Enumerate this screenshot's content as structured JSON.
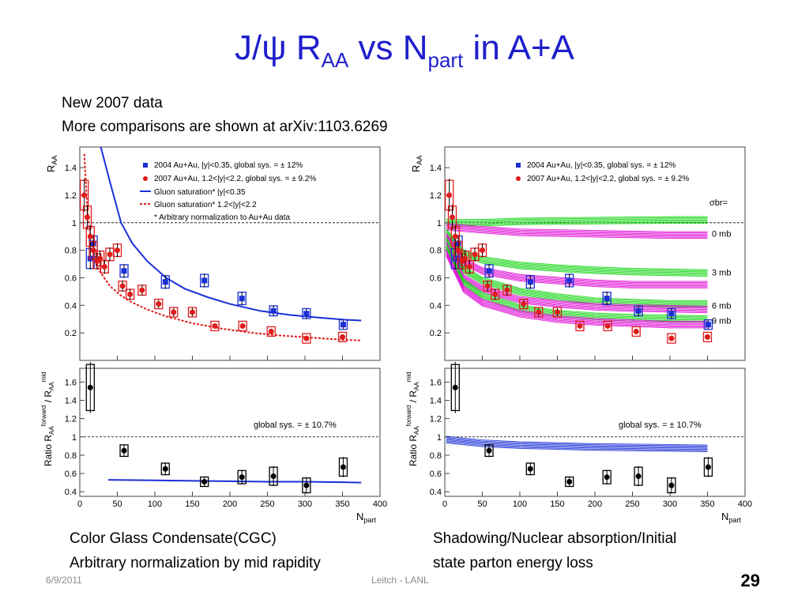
{
  "slide": {
    "title_main": "J/ψ R",
    "title_sub1": "AA",
    "title_mid": " vs N",
    "title_sub2": "part",
    "title_end": " in A+A",
    "note1": "New 2007 data",
    "note2": "More comparisons are shown at arXiv:1103.6269",
    "caption_left": [
      "Color Glass Condensate(CGC)",
      "Arbitrary normalization by mid rapidity"
    ],
    "caption_right": [
      "Shadowing/Nuclear absorption/Initial",
      "state parton energy loss"
    ],
    "date": "6/9/2011",
    "author": "Leitch - LANL",
    "page": "29"
  },
  "colors": {
    "title": "#1f1fcc",
    "blue": "#1a2fd6",
    "red": "#e01b1b",
    "green": "#19d619",
    "magenta": "#e010d6"
  },
  "chart_data": [
    {
      "panel": "left-top",
      "type": "scatter",
      "ylabel": "R_AA",
      "ylim": [
        0,
        1.55
      ],
      "xlim": [
        0,
        400
      ],
      "yticks": [
        "0.2",
        "0.4",
        "0.6",
        "0.8",
        "1",
        "1.2",
        "1.4"
      ],
      "legend": {
        "blue": "2004 Au+Au,   |y|<0.35,    global sys. = ± 12%",
        "red": "2007 Au+Au,  1.2<|y|<2.2,  global sys. = ± 9.2%",
        "blue_line": "Gluon saturation* |y|<0.35",
        "red_line": "Gluon saturation* 1.2<|y|<2.2",
        "footnote": "* Arbitrary normalization to Au+Au data"
      },
      "series": [
        {
          "name": "2004 Au+Au, |y|<0.35",
          "color": "blue",
          "x": [
            14,
            18,
            59,
            114,
            166,
            216,
            258,
            302,
            351
          ],
          "y": [
            0.74,
            0.85,
            0.65,
            0.57,
            0.58,
            0.45,
            0.36,
            0.34,
            0.26
          ],
          "err": [
            0.08,
            0.06,
            0.05,
            0.05,
            0.05,
            0.05,
            0.04,
            0.04,
            0.03
          ]
        },
        {
          "name": "2007 Au+Au, 1.2<|y|<2.2",
          "color": "red",
          "x": [
            6,
            10,
            14,
            18,
            23,
            27,
            33,
            40,
            50,
            57,
            67,
            83,
            105,
            125,
            150,
            180,
            217,
            255,
            302,
            350
          ],
          "y": [
            1.2,
            1.04,
            0.9,
            0.8,
            0.72,
            0.74,
            0.68,
            0.77,
            0.8,
            0.54,
            0.48,
            0.51,
            0.41,
            0.35,
            0.35,
            0.25,
            0.25,
            0.21,
            0.16,
            0.17
          ],
          "err": [
            0.12,
            0.09,
            0.08,
            0.07,
            0.06,
            0.06,
            0.05,
            0.05,
            0.05,
            0.04,
            0.04,
            0.04,
            0.03,
            0.03,
            0.03,
            0.02,
            0.02,
            0.02,
            0.02,
            0.02
          ]
        }
      ],
      "curves": [
        {
          "name": "Gluon saturation* |y|<0.35",
          "color": "blue",
          "x": [
            28,
            40,
            55,
            70,
            90,
            115,
            140,
            170,
            200,
            240,
            280,
            320,
            355,
            375
          ],
          "y": [
            1.55,
            1.3,
            1.0,
            0.85,
            0.72,
            0.6,
            0.52,
            0.46,
            0.41,
            0.36,
            0.33,
            0.31,
            0.295,
            0.29
          ]
        },
        {
          "name": "Gluon saturation* 1.2<|y|<2.2",
          "color": "red",
          "x": [
            6,
            10,
            15,
            25,
            40,
            55,
            70,
            90,
            115,
            150,
            190,
            230,
            270,
            310,
            350,
            375
          ],
          "y": [
            1.5,
            1.1,
            0.85,
            0.66,
            0.54,
            0.47,
            0.42,
            0.37,
            0.32,
            0.27,
            0.23,
            0.2,
            0.18,
            0.165,
            0.15,
            0.145
          ]
        }
      ]
    },
    {
      "panel": "left-bottom",
      "type": "scatter",
      "ylabel": "Ratio R_AA^forward / R_AA^mid",
      "xlabel": "N_part",
      "ylim": [
        0.35,
        1.75
      ],
      "xlim": [
        0,
        400
      ],
      "yticks": [
        "0.4",
        "0.6",
        "0.8",
        "1",
        "1.2",
        "1.4",
        "1.6"
      ],
      "xticks": [
        "0",
        "50",
        "100",
        "150",
        "200",
        "250",
        "300",
        "350",
        "400"
      ],
      "annotation": "global sys. = ± 10.7%",
      "series": [
        {
          "name": "ratio",
          "color": "black",
          "x": [
            14,
            59,
            114,
            166,
            216,
            258,
            302,
            351
          ],
          "y": [
            1.54,
            0.85,
            0.65,
            0.51,
            0.56,
            0.57,
            0.47,
            0.67
          ],
          "err": [
            0.28,
            0.07,
            0.07,
            0.05,
            0.08,
            0.11,
            0.09,
            0.11
          ]
        }
      ],
      "curves": [
        {
          "name": "CGC ratio",
          "color": "blue",
          "x": [
            38,
            100,
            150,
            200,
            250,
            300,
            350,
            375
          ],
          "y": [
            0.53,
            0.525,
            0.52,
            0.515,
            0.51,
            0.51,
            0.505,
            0.5
          ]
        }
      ]
    },
    {
      "panel": "right-top",
      "type": "scatter",
      "ylabel": "R_AA",
      "ylim": [
        0,
        1.55
      ],
      "xlim": [
        0,
        400
      ],
      "yticks": [
        "0.2",
        "0.4",
        "0.6",
        "0.8",
        "1",
        "1.2",
        "1.4"
      ],
      "legend": {
        "blue": "2004 Au+Au,   |y|<0.35,    global sys. = ± 12%",
        "red": "2007 Au+Au,  1.2<|y|<2.2,  global sys. = ± 9.2%",
        "sigma": "σbr="
      },
      "band_labels": [
        "0 mb",
        "3 mb",
        "6 mb",
        "9 mb"
      ],
      "series": [
        {
          "name": "2004 Au+Au, |y|<0.35",
          "color": "blue",
          "x": [
            14,
            18,
            59,
            114,
            166,
            216,
            258,
            302,
            351
          ],
          "y": [
            0.74,
            0.85,
            0.65,
            0.57,
            0.58,
            0.45,
            0.36,
            0.34,
            0.26
          ],
          "err": [
            0.08,
            0.06,
            0.05,
            0.05,
            0.05,
            0.05,
            0.04,
            0.04,
            0.03
          ]
        },
        {
          "name": "2007 Au+Au, 1.2<|y|<2.2",
          "color": "red",
          "x": [
            6,
            10,
            14,
            18,
            23,
            27,
            33,
            40,
            50,
            57,
            67,
            83,
            105,
            125,
            150,
            180,
            217,
            255,
            302,
            350
          ],
          "y": [
            1.2,
            1.04,
            0.9,
            0.8,
            0.72,
            0.74,
            0.68,
            0.77,
            0.8,
            0.54,
            0.48,
            0.51,
            0.41,
            0.35,
            0.35,
            0.25,
            0.25,
            0.21,
            0.16,
            0.17
          ],
          "err": [
            0.12,
            0.09,
            0.08,
            0.07,
            0.06,
            0.06,
            0.05,
            0.05,
            0.05,
            0.04,
            0.04,
            0.04,
            0.03,
            0.03,
            0.03,
            0.02,
            0.02,
            0.02,
            0.02,
            0.02
          ]
        }
      ],
      "bands": [
        {
          "name": "0 mb mid",
          "color": "green",
          "x": [
            2,
            50,
            100,
            200,
            300,
            350
          ],
          "y": [
            1.0,
            1.0,
            1.01,
            1.015,
            1.02,
            1.02
          ]
        },
        {
          "name": "0 mb fwd",
          "color": "magenta",
          "x": [
            2,
            50,
            100,
            200,
            300,
            350
          ],
          "y": [
            0.97,
            0.95,
            0.93,
            0.92,
            0.91,
            0.91
          ]
        },
        {
          "name": "3 mb mid",
          "color": "green",
          "x": [
            2,
            25,
            50,
            100,
            150,
            200,
            250,
            300,
            350
          ],
          "y": [
            0.93,
            0.78,
            0.73,
            0.69,
            0.67,
            0.655,
            0.645,
            0.64,
            0.635
          ]
        },
        {
          "name": "3 mb fwd",
          "color": "magenta",
          "x": [
            2,
            25,
            50,
            100,
            150,
            200,
            250,
            300,
            350
          ],
          "y": [
            0.9,
            0.72,
            0.65,
            0.6,
            0.58,
            0.56,
            0.55,
            0.55,
            0.55
          ]
        },
        {
          "name": "6 mb mid",
          "color": "green",
          "x": [
            2,
            25,
            50,
            100,
            150,
            200,
            250,
            300,
            350
          ],
          "y": [
            0.87,
            0.66,
            0.58,
            0.5,
            0.46,
            0.43,
            0.42,
            0.41,
            0.41
          ]
        },
        {
          "name": "6 mb fwd",
          "color": "magenta",
          "x": [
            2,
            25,
            50,
            100,
            150,
            200,
            250,
            300,
            350
          ],
          "y": [
            0.84,
            0.6,
            0.52,
            0.44,
            0.41,
            0.39,
            0.38,
            0.375,
            0.37
          ]
        },
        {
          "name": "9 mb mid",
          "color": "green",
          "x": [
            2,
            25,
            50,
            100,
            150,
            200,
            250,
            300,
            350
          ],
          "y": [
            0.82,
            0.57,
            0.47,
            0.38,
            0.34,
            0.32,
            0.31,
            0.305,
            0.3
          ]
        },
        {
          "name": "9 mb fwd",
          "color": "magenta",
          "x": [
            2,
            25,
            50,
            100,
            150,
            200,
            250,
            300,
            350
          ],
          "y": [
            0.78,
            0.52,
            0.42,
            0.34,
            0.3,
            0.28,
            0.27,
            0.26,
            0.26
          ]
        }
      ]
    },
    {
      "panel": "right-bottom",
      "type": "scatter",
      "ylabel": "Ratio R_AA^forward / R_AA^mid",
      "xlabel": "N_part",
      "ylim": [
        0.35,
        1.75
      ],
      "xlim": [
        0,
        400
      ],
      "yticks": [
        "0.4",
        "0.6",
        "0.8",
        "1",
        "1.2",
        "1.4",
        "1.6"
      ],
      "xticks": [
        "0",
        "50",
        "100",
        "150",
        "200",
        "250",
        "300",
        "350",
        "400"
      ],
      "annotation": "global sys. = ± 10.7%",
      "series": [
        {
          "name": "ratio",
          "color": "black",
          "x": [
            14,
            59,
            114,
            166,
            216,
            258,
            302,
            351
          ],
          "y": [
            1.54,
            0.85,
            0.65,
            0.51,
            0.56,
            0.57,
            0.47,
            0.67
          ],
          "err": [
            0.28,
            0.07,
            0.07,
            0.05,
            0.08,
            0.11,
            0.09,
            0.11
          ]
        }
      ],
      "bands": [
        {
          "name": "shadowing ratio",
          "color": "blue",
          "x": [
            2,
            50,
            100,
            200,
            300,
            350
          ],
          "y": [
            0.97,
            0.93,
            0.91,
            0.89,
            0.88,
            0.875
          ]
        }
      ]
    }
  ]
}
